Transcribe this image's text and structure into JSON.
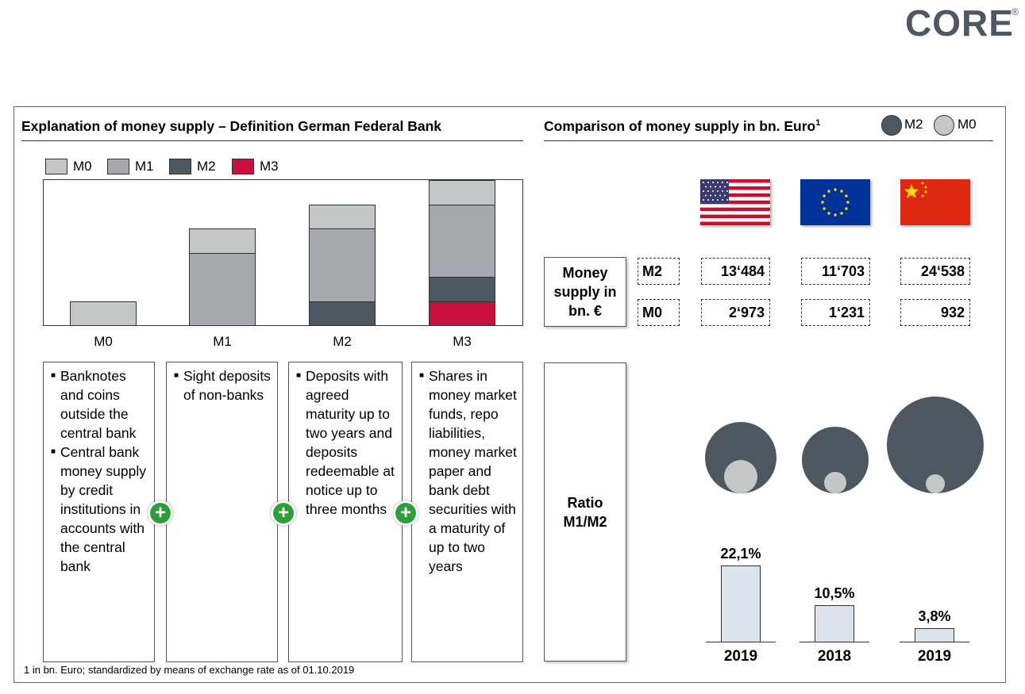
{
  "logo": {
    "text": "CORE",
    "registered": "®"
  },
  "left": {
    "title": "Explanation of money supply – Definition German Federal Bank",
    "legend": [
      {
        "label": "M0",
        "color": "#c3c7c6"
      },
      {
        "label": "M1",
        "color": "#a5a9ae"
      },
      {
        "label": "M2",
        "color": "#4d5760"
      },
      {
        "label": "M3",
        "color": "#c8103e"
      }
    ],
    "descriptions": [
      {
        "bullets": [
          "Banknotes and coins outside the central bank",
          "Central bank money supply by credit institutions in accounts with the central bank"
        ]
      },
      {
        "bullets": [
          " Sight deposits of non-banks"
        ]
      },
      {
        "bullets": [
          "Deposits with agreed maturity up to two years and deposits redeemable at notice up to three months"
        ]
      },
      {
        "bullets": [
          "Shares in money market funds, repo liabilities, money market paper and bank debt securities with a maturity of up to two years"
        ]
      }
    ],
    "plus_symbol": "+",
    "bullet_symbol": "■"
  },
  "chart_data": {
    "type": "bar",
    "stacked": true,
    "categories": [
      "M0",
      "M1",
      "M2",
      "M3"
    ],
    "series": [
      {
        "name": "M3",
        "values": [
          0,
          0,
          0,
          1
        ]
      },
      {
        "name": "M2",
        "values": [
          0,
          0,
          1,
          1
        ]
      },
      {
        "name": "M1",
        "values": [
          0,
          3,
          3,
          3
        ]
      },
      {
        "name": "M0",
        "values": [
          1,
          1,
          1,
          1
        ]
      }
    ],
    "ylim": [
      0,
      6
    ],
    "legend": [
      "M0",
      "M1",
      "M2",
      "M3"
    ],
    "title": "",
    "xlabel": "",
    "ylabel": ""
  },
  "right": {
    "title": "Comparison of money supply in bn. Euro",
    "title_sup": "1",
    "legend": [
      {
        "label": "M2",
        "color": "#4d5760"
      },
      {
        "label": "M0",
        "color": "#c3c7c6"
      }
    ],
    "money_supply_label": "Money supply in bn. €",
    "ratio_label": "Ratio M1/M2",
    "rows": [
      {
        "label": "M2",
        "values": [
          "13‘484",
          "11‘703",
          "24‘538"
        ]
      },
      {
        "label": "M0",
        "values": [
          "2‘973",
          "1‘231",
          "932"
        ]
      }
    ],
    "countries": [
      {
        "flag": "us-flag",
        "m2": 13484,
        "m0": 2973,
        "ratio_label": "22,1%",
        "ratio": 22.1,
        "year": "2019"
      },
      {
        "flag": "eu-flag",
        "m2": 11703,
        "m0": 1231,
        "ratio_label": "10,5%",
        "ratio": 10.5,
        "year": "2018"
      },
      {
        "flag": "cn-flag",
        "m2": 24538,
        "m0": 932,
        "ratio_label": "3,8%",
        "ratio": 3.8,
        "year": "2019"
      }
    ]
  },
  "footnote": "1 in bn. Euro; standardized by means of exchange rate as of 01.10.2019"
}
